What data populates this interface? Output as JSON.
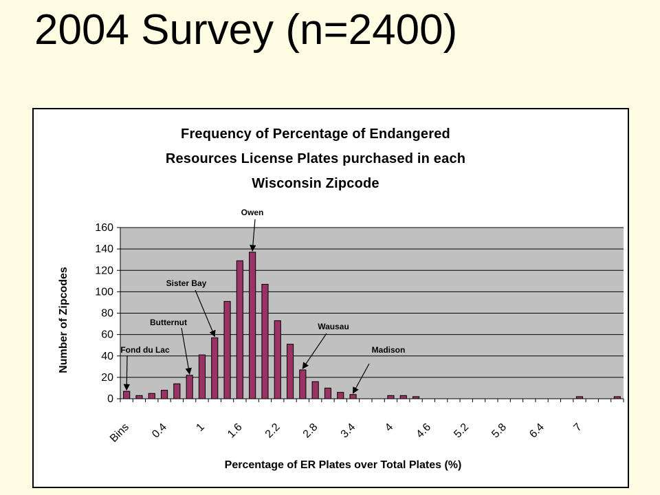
{
  "slide": {
    "title": "2004 Survey (n=2400)"
  },
  "chart_data": {
    "type": "bar",
    "title_lines": [
      "Frequency of Percentage of Endangered",
      "Resources License Plates purchased in each",
      "Wisconsin Zipcode"
    ],
    "xlabel": "Percentage of ER Plates over Total Plates (%)",
    "ylabel": "Number of Zipcodes",
    "ylim": [
      0,
      160
    ],
    "yticks": [
      0,
      20,
      40,
      60,
      80,
      100,
      120,
      140,
      160
    ],
    "grid": true,
    "legend": "none",
    "bar_color": "#993366",
    "plot_background": "#c0c0c0",
    "x_tick_labels": [
      "Bins",
      "0.4",
      "1",
      "1.6",
      "2.2",
      "2.8",
      "3.4",
      "4",
      "4.6",
      "5.2",
      "5.8",
      "6.4",
      "7"
    ],
    "values": [
      7,
      3,
      5,
      8,
      14,
      22,
      41,
      57,
      91,
      129,
      137,
      107,
      73,
      51,
      27,
      16,
      10,
      6,
      4,
      0,
      0,
      3,
      3,
      2,
      0,
      0,
      0,
      0,
      0,
      0,
      0,
      0,
      0,
      0,
      0,
      0,
      2,
      0,
      0,
      2
    ],
    "annotations": [
      {
        "label": "Owen",
        "bar_index": 10
      },
      {
        "label": "Sister Bay",
        "bar_index": 7
      },
      {
        "label": "Butternut",
        "bar_index": 5
      },
      {
        "label": "Fond du Lac",
        "bar_index": 0
      },
      {
        "label": "Wausau",
        "bar_index": 14
      },
      {
        "label": "Madison",
        "bar_index": 18
      }
    ]
  }
}
